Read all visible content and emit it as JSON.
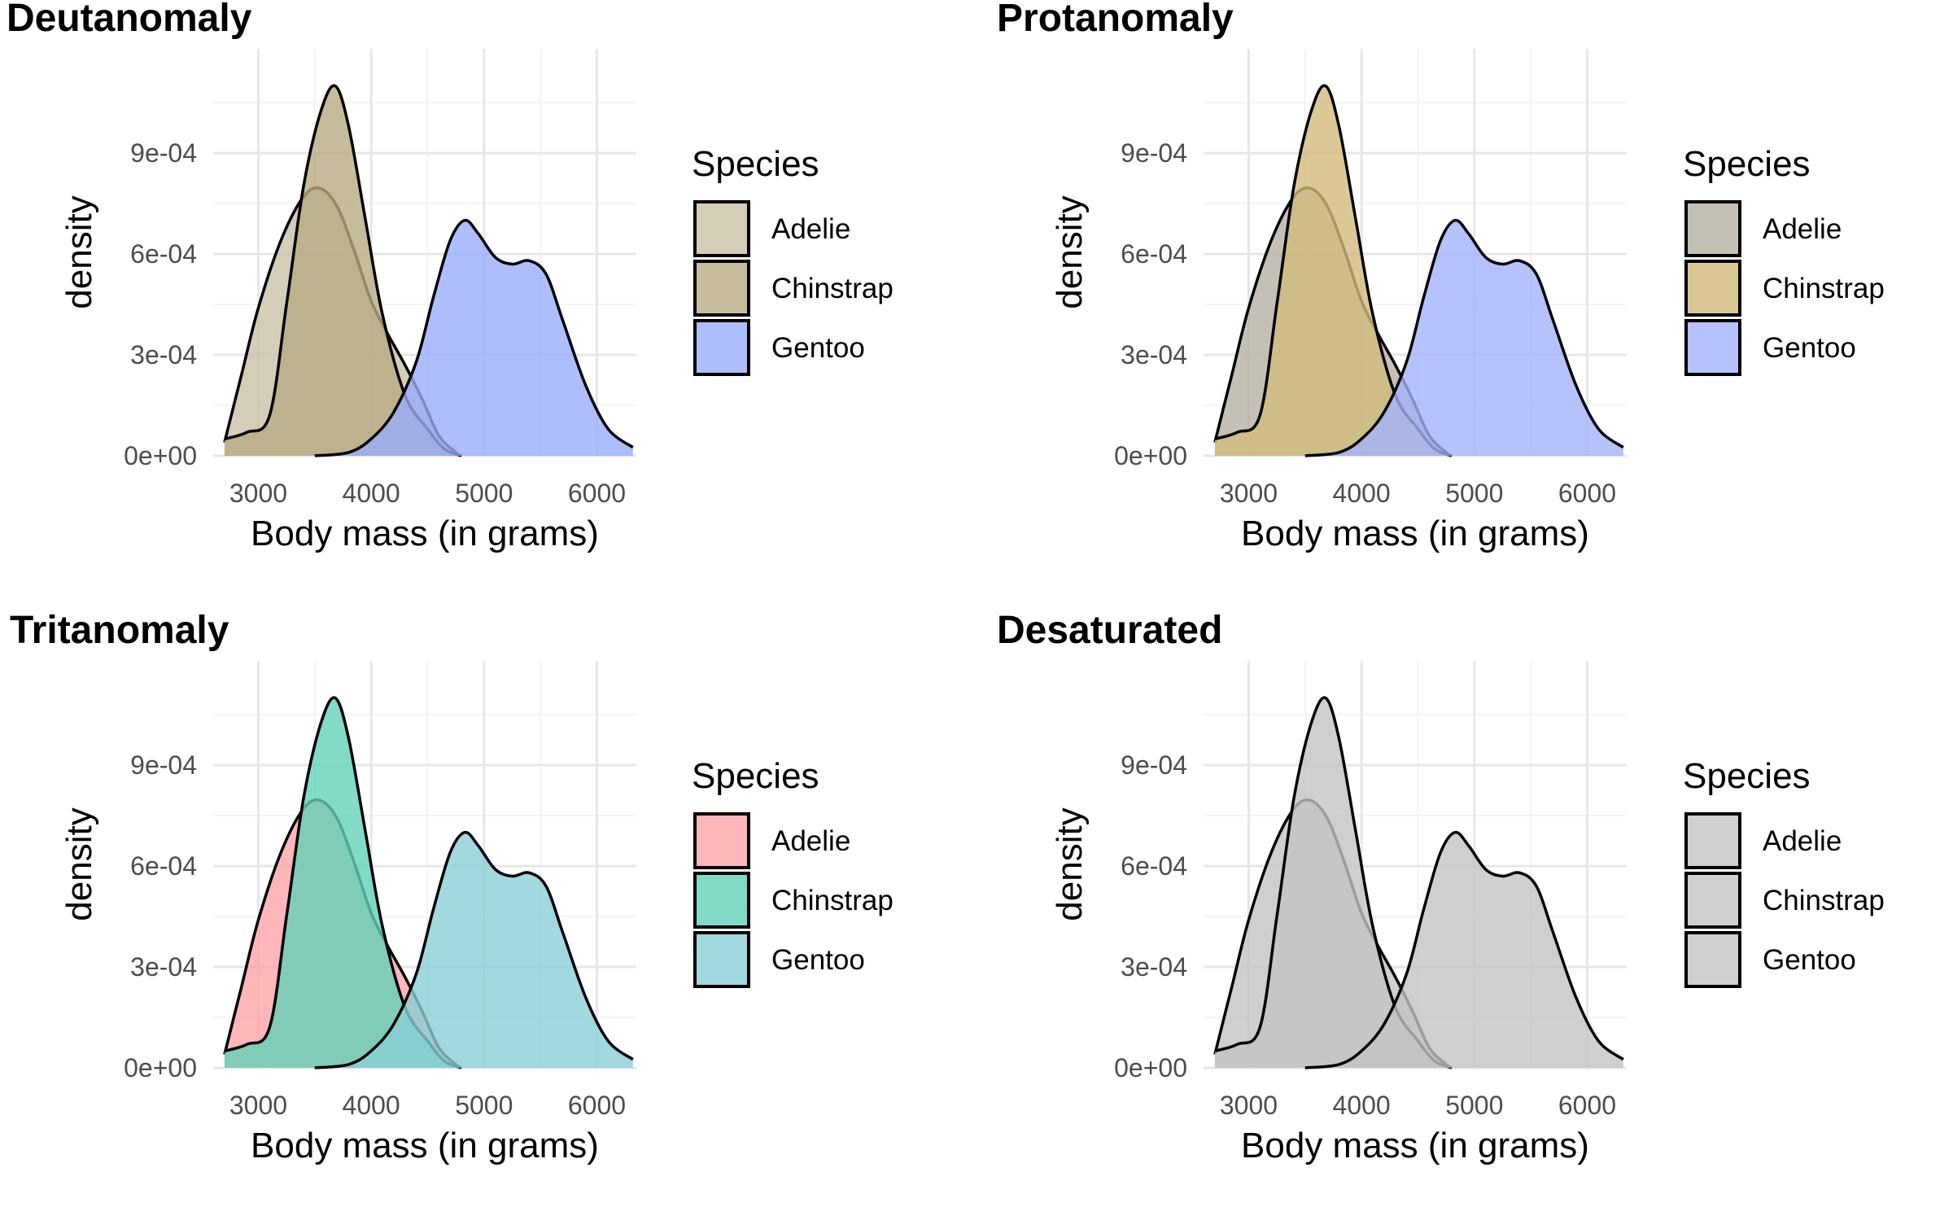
{
  "chart_data": [
    {
      "type": "area",
      "title": "Deutanomaly",
      "xlabel": "Body mass (in grams)",
      "ylabel": "density",
      "xlim": [
        2600,
        6350
      ],
      "ylim": [
        0,
        0.00121
      ],
      "x_ticks": [
        3000,
        4000,
        5000,
        6000
      ],
      "x_tick_labels": [
        "3000",
        "4000",
        "5000",
        "6000"
      ],
      "y_ticks": [
        0,
        0.0003,
        0.0006,
        0.0009
      ],
      "y_tick_labels": [
        "0e+00",
        "3e-04",
        "6e-04",
        "9e-04"
      ],
      "grid": true,
      "legend": {
        "title": "Species",
        "position": "right"
      },
      "series": [
        {
          "name": "Adelie",
          "color": "#c9c2a6",
          "x": [
            2700,
            2850,
            3000,
            3200,
            3400,
            3550,
            3700,
            3850,
            4000,
            4150,
            4300,
            4450,
            4600,
            4750,
            4800
          ],
          "y": [
            4e-05,
            0.00024,
            0.00044,
            0.00064,
            0.00077,
            0.000795,
            0.00074,
            0.00061,
            0.00046,
            0.00036,
            0.00027,
            0.00017,
            6e-05,
            1e-05,
            0.0
          ]
        },
        {
          "name": "Chinstrap",
          "color": "#b8aa82",
          "x": [
            2700,
            2900,
            3100,
            3250,
            3400,
            3550,
            3680,
            3800,
            3950,
            4100,
            4300,
            4500,
            4650,
            4800
          ],
          "y": [
            5e-05,
            7e-05,
            0.00012,
            0.00045,
            0.0008,
            0.00102,
            0.0011,
            0.00098,
            0.0007,
            0.00042,
            0.00018,
            8e-05,
            2e-05,
            0.0
          ]
        },
        {
          "name": "Gentoo",
          "color": "#9aacfb",
          "x": [
            3500,
            3800,
            4000,
            4200,
            4400,
            4550,
            4700,
            4830,
            4950,
            5100,
            5250,
            5400,
            5550,
            5700,
            5900,
            6100,
            6320
          ],
          "y": [
            0.0,
            1e-05,
            5e-05,
            0.00013,
            0.00028,
            0.00047,
            0.00064,
            0.0007,
            0.00066,
            0.00059,
            0.00057,
            0.00058,
            0.00054,
            0.0004,
            0.00021,
            8e-05,
            2.5e-05
          ]
        }
      ]
    },
    {
      "type": "area",
      "title": "Protanomaly",
      "xlabel": "Body mass (in grams)",
      "ylabel": "density",
      "xlim": [
        2600,
        6350
      ],
      "ylim": [
        0,
        0.00121
      ],
      "x_ticks": [
        3000,
        4000,
        5000,
        6000
      ],
      "x_tick_labels": [
        "3000",
        "4000",
        "5000",
        "6000"
      ],
      "y_ticks": [
        0,
        0.0003,
        0.0006,
        0.0009
      ],
      "y_tick_labels": [
        "0e+00",
        "3e-04",
        "6e-04",
        "9e-04"
      ],
      "grid": true,
      "legend": {
        "title": "Species",
        "position": "right"
      },
      "series": [
        {
          "name": "Adelie",
          "color": "#b6b0a3",
          "x": [
            2700,
            2850,
            3000,
            3200,
            3400,
            3550,
            3700,
            3850,
            4000,
            4150,
            4300,
            4450,
            4600,
            4750,
            4800
          ],
          "y": [
            4e-05,
            0.00024,
            0.00044,
            0.00064,
            0.00077,
            0.000795,
            0.00074,
            0.00061,
            0.00046,
            0.00036,
            0.00027,
            0.00017,
            6e-05,
            1e-05,
            0.0
          ]
        },
        {
          "name": "Chinstrap",
          "color": "#d1bc7d",
          "x": [
            2700,
            2900,
            3100,
            3250,
            3400,
            3550,
            3680,
            3800,
            3950,
            4100,
            4300,
            4500,
            4650,
            4800
          ],
          "y": [
            5e-05,
            7e-05,
            0.00012,
            0.00045,
            0.0008,
            0.00102,
            0.0011,
            0.00098,
            0.0007,
            0.00042,
            0.00018,
            8e-05,
            2e-05,
            0.0
          ]
        },
        {
          "name": "Gentoo",
          "color": "#a3b3fb",
          "x": [
            3500,
            3800,
            4000,
            4200,
            4400,
            4550,
            4700,
            4830,
            4950,
            5100,
            5250,
            5400,
            5550,
            5700,
            5900,
            6100,
            6320
          ],
          "y": [
            0.0,
            1e-05,
            5e-05,
            0.00013,
            0.00028,
            0.00047,
            0.00064,
            0.0007,
            0.00066,
            0.00059,
            0.00057,
            0.00058,
            0.00054,
            0.0004,
            0.00021,
            8e-05,
            2.5e-05
          ]
        }
      ]
    },
    {
      "type": "area",
      "title": "Tritanomaly",
      "xlabel": "Body mass (in grams)",
      "ylabel": "density",
      "xlim": [
        2600,
        6350
      ],
      "ylim": [
        0,
        0.00121
      ],
      "x_ticks": [
        3000,
        4000,
        5000,
        6000
      ],
      "x_tick_labels": [
        "3000",
        "4000",
        "5000",
        "6000"
      ],
      "y_ticks": [
        0,
        0.0003,
        0.0006,
        0.0009
      ],
      "y_tick_labels": [
        "0e+00",
        "3e-04",
        "6e-04",
        "9e-04"
      ],
      "grid": true,
      "legend": {
        "title": "Species",
        "position": "right"
      },
      "series": [
        {
          "name": "Adelie",
          "color": "#fca4a8",
          "x": [
            2700,
            2850,
            3000,
            3200,
            3400,
            3550,
            3700,
            3850,
            4000,
            4150,
            4300,
            4450,
            4600,
            4750,
            4800
          ],
          "y": [
            4e-05,
            0.00024,
            0.00044,
            0.00064,
            0.00077,
            0.000795,
            0.00074,
            0.00061,
            0.00046,
            0.00036,
            0.00027,
            0.00017,
            6e-05,
            1e-05,
            0.0
          ]
        },
        {
          "name": "Chinstrap",
          "color": "#62d2b8",
          "x": [
            2700,
            2900,
            3100,
            3250,
            3400,
            3550,
            3680,
            3800,
            3950,
            4100,
            4300,
            4500,
            4650,
            4800
          ],
          "y": [
            5e-05,
            7e-05,
            0.00012,
            0.00045,
            0.0008,
            0.00102,
            0.0011,
            0.00098,
            0.0007,
            0.00042,
            0.00018,
            8e-05,
            2e-05,
            0.0
          ]
        },
        {
          "name": "Gentoo",
          "color": "#8acfd6",
          "x": [
            3500,
            3800,
            4000,
            4200,
            4400,
            4550,
            4700,
            4830,
            4950,
            5100,
            5250,
            5400,
            5550,
            5700,
            5900,
            6100,
            6320
          ],
          "y": [
            0.0,
            1e-05,
            5e-05,
            0.00013,
            0.00028,
            0.00047,
            0.00064,
            0.0007,
            0.00066,
            0.00059,
            0.00057,
            0.00058,
            0.00054,
            0.0004,
            0.00021,
            8e-05,
            2.5e-05
          ]
        }
      ]
    },
    {
      "type": "area",
      "title": "Desaturated",
      "xlabel": "Body mass (in grams)",
      "ylabel": "density",
      "xlim": [
        2600,
        6350
      ],
      "ylim": [
        0,
        0.00121
      ],
      "x_ticks": [
        3000,
        4000,
        5000,
        6000
      ],
      "x_tick_labels": [
        "3000",
        "4000",
        "5000",
        "6000"
      ],
      "y_ticks": [
        0,
        0.0003,
        0.0006,
        0.0009
      ],
      "y_tick_labels": [
        "0e+00",
        "3e-04",
        "6e-04",
        "9e-04"
      ],
      "grid": true,
      "legend": {
        "title": "Species",
        "position": "right"
      },
      "series": [
        {
          "name": "Adelie",
          "color": "#c3c3c3",
          "x": [
            2700,
            2850,
            3000,
            3200,
            3400,
            3550,
            3700,
            3850,
            4000,
            4150,
            4300,
            4450,
            4600,
            4750,
            4800
          ],
          "y": [
            4e-05,
            0.00024,
            0.00044,
            0.00064,
            0.00077,
            0.000795,
            0.00074,
            0.00061,
            0.00046,
            0.00036,
            0.00027,
            0.00017,
            6e-05,
            1e-05,
            0.0
          ]
        },
        {
          "name": "Chinstrap",
          "color": "#c3c3c3",
          "x": [
            2700,
            2900,
            3100,
            3250,
            3400,
            3550,
            3680,
            3800,
            3950,
            4100,
            4300,
            4500,
            4650,
            4800
          ],
          "y": [
            5e-05,
            7e-05,
            0.00012,
            0.00045,
            0.0008,
            0.00102,
            0.0011,
            0.00098,
            0.0007,
            0.00042,
            0.00018,
            8e-05,
            2e-05,
            0.0
          ]
        },
        {
          "name": "Gentoo",
          "color": "#c3c3c3",
          "x": [
            3500,
            3800,
            4000,
            4200,
            4400,
            4550,
            4700,
            4830,
            4950,
            5100,
            5250,
            5400,
            5550,
            5700,
            5900,
            6100,
            6320
          ],
          "y": [
            0.0,
            1e-05,
            5e-05,
            0.00013,
            0.00028,
            0.00047,
            0.00064,
            0.0007,
            0.00066,
            0.00059,
            0.00057,
            0.00058,
            0.00054,
            0.0004,
            0.00021,
            8e-05,
            2.5e-05
          ]
        }
      ]
    }
  ]
}
